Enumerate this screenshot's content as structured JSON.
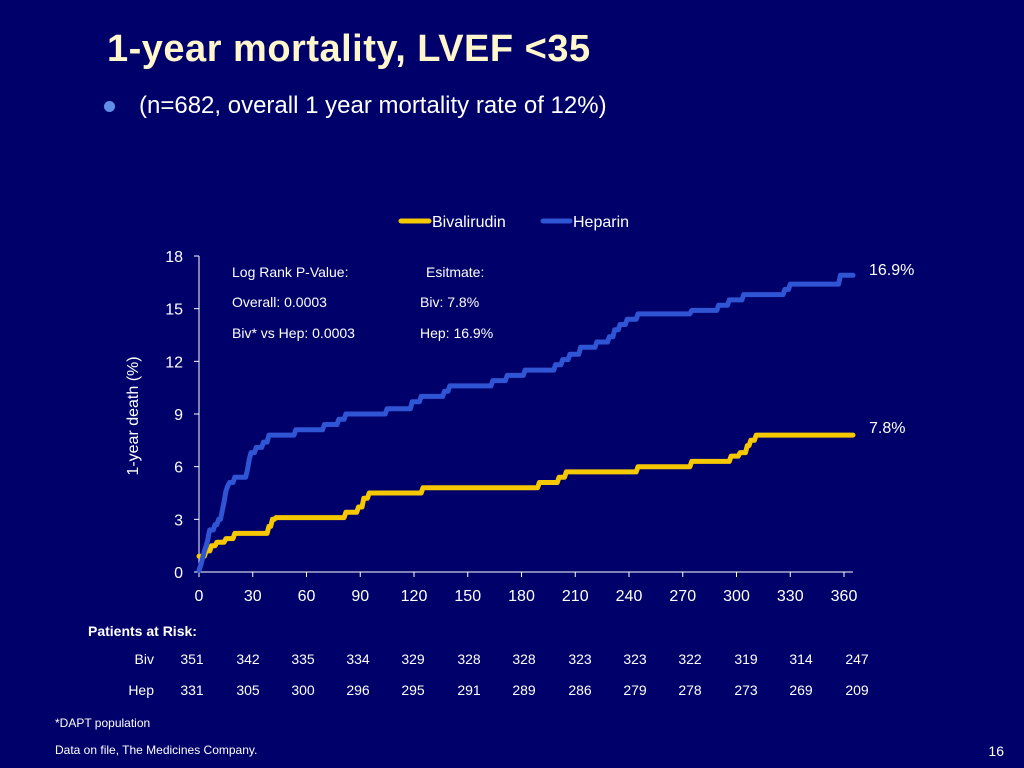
{
  "slide": {
    "title": "1-year mortality, LVEF <35",
    "bullet": "(n=682, overall 1 year mortality rate of 12%)",
    "footnote": "*DAPT population",
    "source": "Data on file, The Medicines Company.",
    "page_number": "16"
  },
  "colors": {
    "background": "#00006a",
    "bivalirudin": "#f5c800",
    "heparin": "#2f55d4",
    "title": "#fff6cc"
  },
  "chart_data": {
    "type": "line",
    "xlabel": "",
    "ylabel": "1-year death (%)",
    "xlim": [
      0,
      360
    ],
    "ylim": [
      0,
      18
    ],
    "xticks": [
      "0",
      "30",
      "60",
      "90",
      "120",
      "150",
      "180",
      "210",
      "240",
      "270",
      "300",
      "330",
      "360"
    ],
    "yticks": [
      "0",
      "3",
      "6",
      "9",
      "12",
      "15",
      "18"
    ],
    "legend": [
      "Bivalirudin",
      "Heparin"
    ],
    "legend_position": "top",
    "annotations": {
      "stats_header_left": "Log Rank P-Value:",
      "stats_header_right": "Esitmate:",
      "overall": "Overall: 0.0003",
      "biv_est": "Biv: 7.8%",
      "biv_vs_hep": "Biv* vs Hep: 0.0003",
      "hep_est": "Hep: 16.9%",
      "hep_end": "16.9%",
      "biv_end": "7.8%"
    },
    "series": [
      {
        "name": "Bivalirudin",
        "points": [
          [
            0,
            0.9
          ],
          [
            3,
            0.9
          ],
          [
            4,
            1.2
          ],
          [
            6,
            1.2
          ],
          [
            7,
            1.5
          ],
          [
            9,
            1.5
          ],
          [
            10,
            1.7
          ],
          [
            14,
            1.7
          ],
          [
            15,
            1.9
          ],
          [
            19,
            1.9
          ],
          [
            20,
            2.2
          ],
          [
            38,
            2.2
          ],
          [
            39,
            2.6
          ],
          [
            40,
            2.6
          ],
          [
            41,
            3.0
          ],
          [
            42,
            3.0
          ],
          [
            43,
            3.1
          ],
          [
            81,
            3.1
          ],
          [
            82,
            3.4
          ],
          [
            88,
            3.4
          ],
          [
            89,
            3.7
          ],
          [
            91,
            3.7
          ],
          [
            92,
            4.2
          ],
          [
            94,
            4.2
          ],
          [
            95,
            4.5
          ],
          [
            124,
            4.5
          ],
          [
            125,
            4.8
          ],
          [
            189,
            4.8
          ],
          [
            190,
            5.1
          ],
          [
            200,
            5.1
          ],
          [
            201,
            5.4
          ],
          [
            204,
            5.4
          ],
          [
            205,
            5.7
          ],
          [
            244,
            5.7
          ],
          [
            245,
            6.0
          ],
          [
            274,
            6.0
          ],
          [
            275,
            6.3
          ],
          [
            296,
            6.3
          ],
          [
            297,
            6.6
          ],
          [
            301,
            6.6
          ],
          [
            302,
            6.8
          ],
          [
            305,
            6.8
          ],
          [
            306,
            7.2
          ],
          [
            307,
            7.2
          ],
          [
            308,
            7.5
          ],
          [
            310,
            7.5
          ],
          [
            311,
            7.8
          ],
          [
            365,
            7.8
          ]
        ]
      },
      {
        "name": "Heparin",
        "points": [
          [
            0,
            0.1
          ],
          [
            1,
            0.4
          ],
          [
            2,
            0.8
          ],
          [
            3,
            1.2
          ],
          [
            4,
            1.5
          ],
          [
            5,
            1.9
          ],
          [
            5.5,
            2.2
          ],
          [
            6,
            2.4
          ],
          [
            8,
            2.4
          ],
          [
            9,
            2.7
          ],
          [
            10,
            2.7
          ],
          [
            11,
            3.0
          ],
          [
            12,
            3.0
          ],
          [
            13,
            3.5
          ],
          [
            14,
            4.0
          ],
          [
            15,
            4.6
          ],
          [
            16,
            4.9
          ],
          [
            17,
            5.1
          ],
          [
            19,
            5.1
          ],
          [
            20,
            5.4
          ],
          [
            26,
            5.4
          ],
          [
            27,
            5.8
          ],
          [
            28,
            6.4
          ],
          [
            29,
            6.8
          ],
          [
            31,
            6.8
          ],
          [
            32,
            7.1
          ],
          [
            35,
            7.1
          ],
          [
            36,
            7.4
          ],
          [
            38,
            7.4
          ],
          [
            39,
            7.8
          ],
          [
            53,
            7.8
          ],
          [
            54,
            8.1
          ],
          [
            69,
            8.1
          ],
          [
            70,
            8.4
          ],
          [
            77,
            8.4
          ],
          [
            78,
            8.7
          ],
          [
            81,
            8.7
          ],
          [
            82,
            9.0
          ],
          [
            104,
            9.0
          ],
          [
            105,
            9.3
          ],
          [
            118,
            9.3
          ],
          [
            119,
            9.7
          ],
          [
            123,
            9.7
          ],
          [
            124,
            10.0
          ],
          [
            136,
            10.0
          ],
          [
            137,
            10.3
          ],
          [
            139,
            10.3
          ],
          [
            140,
            10.6
          ],
          [
            163,
            10.6
          ],
          [
            164,
            10.9
          ],
          [
            171,
            10.9
          ],
          [
            172,
            11.2
          ],
          [
            181,
            11.2
          ],
          [
            182,
            11.5
          ],
          [
            198,
            11.5
          ],
          [
            199,
            11.8
          ],
          [
            202,
            11.8
          ],
          [
            203,
            12.1
          ],
          [
            206,
            12.1
          ],
          [
            207,
            12.4
          ],
          [
            212,
            12.4
          ],
          [
            213,
            12.8
          ],
          [
            221,
            12.8
          ],
          [
            222,
            13.1
          ],
          [
            228,
            13.1
          ],
          [
            229,
            13.4
          ],
          [
            231,
            13.4
          ],
          [
            232,
            13.8
          ],
          [
            234,
            13.8
          ],
          [
            235,
            14.1
          ],
          [
            238,
            14.1
          ],
          [
            239,
            14.4
          ],
          [
            244,
            14.4
          ],
          [
            245,
            14.7
          ],
          [
            274,
            14.7
          ],
          [
            275,
            14.9
          ],
          [
            289,
            14.9
          ],
          [
            290,
            15.2
          ],
          [
            295,
            15.2
          ],
          [
            296,
            15.5
          ],
          [
            303,
            15.5
          ],
          [
            304,
            15.8
          ],
          [
            326,
            15.8
          ],
          [
            327,
            16.1
          ],
          [
            329,
            16.1
          ],
          [
            330,
            16.4
          ],
          [
            357,
            16.4
          ],
          [
            358,
            16.9
          ],
          [
            365,
            16.9
          ]
        ]
      }
    ]
  },
  "risk_table": {
    "title": "Patients at Risk:",
    "columns": [
      "351",
      "342",
      "335",
      "334",
      "329",
      "328",
      "328",
      "323",
      "323",
      "322",
      "319",
      "314",
      "247"
    ],
    "rows": [
      {
        "label": "Biv",
        "values": [
          "351",
          "342",
          "335",
          "334",
          "329",
          "328",
          "328",
          "323",
          "323",
          "322",
          "319",
          "314",
          "247"
        ]
      },
      {
        "label": "Hep",
        "values": [
          "331",
          "305",
          "300",
          "296",
          "295",
          "291",
          "289",
          "286",
          "279",
          "278",
          "273",
          "269",
          "209"
        ]
      }
    ]
  }
}
